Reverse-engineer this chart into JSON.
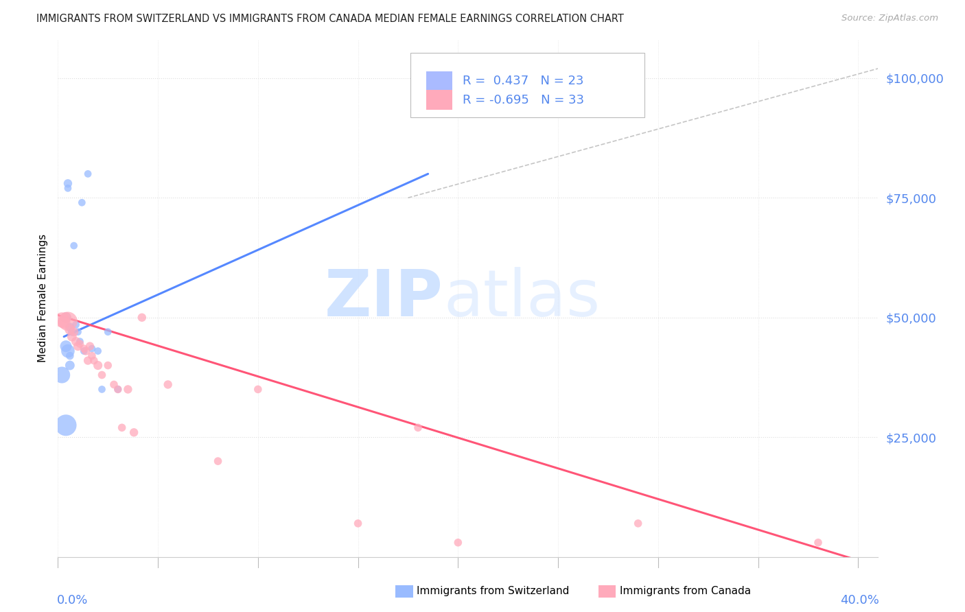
{
  "title": "IMMIGRANTS FROM SWITZERLAND VS IMMIGRANTS FROM CANADA MEDIAN FEMALE EARNINGS CORRELATION CHART",
  "source": "Source: ZipAtlas.com",
  "ylabel": "Median Female Earnings",
  "xtick_left": "0.0%",
  "xtick_right": "40.0%",
  "ytick_values": [
    25000,
    50000,
    75000,
    100000
  ],
  "ytick_labels": [
    "$25,000",
    "$50,000",
    "$75,000",
    "$100,000"
  ],
  "ylim": [
    0,
    108000
  ],
  "xlim": [
    0.0,
    0.41
  ],
  "blue_color": "#99BBFF",
  "pink_color": "#FFAABBs",
  "blue_line_color": "#5588FF",
  "pink_line_color": "#FF5577",
  "dash_color": "#BBBBBB",
  "grid_color": "#DDDDDD",
  "axis_tick_color": "#5588EE",
  "title_color": "#222222",
  "source_color": "#AAAAAA",
  "blue_scatter_x": [
    0.002,
    0.004,
    0.004,
    0.005,
    0.005,
    0.006,
    0.006,
    0.007,
    0.008,
    0.009,
    0.01,
    0.011,
    0.012,
    0.013,
    0.015,
    0.017,
    0.02,
    0.022,
    0.004,
    0.005,
    0.006,
    0.025,
    0.03
  ],
  "blue_scatter_y": [
    38000,
    44000,
    50000,
    78000,
    77000,
    48000,
    42000,
    47000,
    65000,
    48500,
    47000,
    45000,
    74000,
    43000,
    80000,
    43500,
    43000,
    35000,
    27500,
    43000,
    40000,
    47000,
    35000
  ],
  "blue_scatter_s": [
    300,
    150,
    120,
    80,
    60,
    80,
    70,
    70,
    60,
    60,
    60,
    60,
    60,
    60,
    60,
    60,
    60,
    60,
    500,
    200,
    100,
    60,
    60
  ],
  "pink_scatter_x": [
    0.002,
    0.003,
    0.004,
    0.005,
    0.006,
    0.007,
    0.008,
    0.009,
    0.01,
    0.011,
    0.013,
    0.014,
    0.015,
    0.016,
    0.017,
    0.018,
    0.02,
    0.022,
    0.025,
    0.028,
    0.03,
    0.032,
    0.035,
    0.038,
    0.042,
    0.055,
    0.08,
    0.1,
    0.15,
    0.18,
    0.2,
    0.29,
    0.38
  ],
  "pink_scatter_y": [
    49500,
    49000,
    50000,
    49200,
    47500,
    46000,
    47000,
    45000,
    44000,
    44500,
    43500,
    43000,
    41000,
    44000,
    42000,
    41000,
    40000,
    38000,
    40000,
    36000,
    35000,
    27000,
    35000,
    26000,
    50000,
    36000,
    20000,
    35000,
    7000,
    27000,
    3000,
    7000,
    3000
  ],
  "pink_scatter_s": [
    250,
    180,
    130,
    400,
    120,
    100,
    90,
    90,
    90,
    70,
    70,
    80,
    80,
    80,
    70,
    70,
    90,
    70,
    70,
    70,
    70,
    70,
    80,
    80,
    80,
    80,
    70,
    70,
    70,
    70,
    70,
    70,
    70
  ],
  "blue_line_x": [
    0.003,
    0.185
  ],
  "blue_line_y": [
    46000,
    80000
  ],
  "pink_line_x": [
    0.0,
    0.41
  ],
  "pink_line_y": [
    50500,
    -2000
  ],
  "dash_line_x": [
    0.175,
    0.41
  ],
  "dash_line_y": [
    75000,
    102000
  ],
  "legend_label1": "R =  0.437   N = 23",
  "legend_label2": "R = -0.695   N = 33",
  "legend_blue_color": "#AABBFF",
  "legend_pink_color": "#FFAABB",
  "bottom_legend": [
    {
      "label": "Immigrants from Switzerland",
      "color": "#99BBFF"
    },
    {
      "label": "Immigrants from Canada",
      "color": "#FFAABB"
    }
  ]
}
